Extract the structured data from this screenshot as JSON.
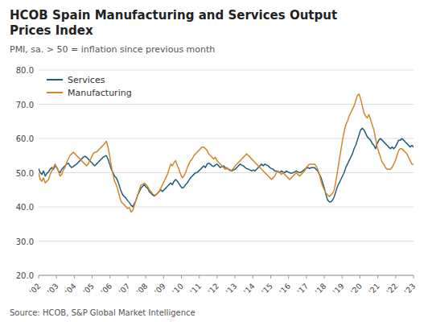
{
  "chart_data": {
    "type": "line",
    "title": "HCOB Spain Manufacturing and Services Output\nPrices Index",
    "subtitle": "PMI, sa. > 50 = inflation since previous month",
    "annotations": [
      "Source: HCOB, S&P Global Market Intelligence"
    ],
    "xlim": [
      2002,
      2023
    ],
    "xticks": [
      {
        "value": 2002,
        "label": "'02"
      },
      {
        "value": 2003,
        "label": "'03"
      },
      {
        "value": 2004,
        "label": "'04"
      },
      {
        "value": 2005,
        "label": "'05"
      },
      {
        "value": 2006,
        "label": "'06"
      },
      {
        "value": 2007,
        "label": "'07"
      },
      {
        "value": 2008,
        "label": "'08"
      },
      {
        "value": 2009,
        "label": "'09"
      },
      {
        "value": 2010,
        "label": "'10"
      },
      {
        "value": 2011,
        "label": "'11"
      },
      {
        "value": 2012,
        "label": "'12"
      },
      {
        "value": 2013,
        "label": "'13"
      },
      {
        "value": 2014,
        "label": "'14"
      },
      {
        "value": 2015,
        "label": "'15"
      },
      {
        "value": 2016,
        "label": "'16"
      },
      {
        "value": 2017,
        "label": "'17"
      },
      {
        "value": 2018,
        "label": "'18"
      },
      {
        "value": 2019,
        "label": "'19"
      },
      {
        "value": 2020,
        "label": "'20"
      },
      {
        "value": 2021,
        "label": "'21"
      },
      {
        "value": 2022,
        "label": "'22"
      },
      {
        "value": 2023,
        "label": "'23"
      }
    ],
    "ylim": [
      20.0,
      80.0
    ],
    "yticks": [
      {
        "value": 20.0,
        "label": "20.0"
      },
      {
        "value": 30.0,
        "label": "30.0"
      },
      {
        "value": 40.0,
        "label": "40.0"
      },
      {
        "value": 50.0,
        "label": "50.0"
      },
      {
        "value": 60.0,
        "label": "60.0"
      },
      {
        "value": 70.0,
        "label": "70.0"
      },
      {
        "value": 80.0,
        "label": "80.0"
      }
    ],
    "grid": true,
    "legend": "upper left",
    "series": [
      {
        "name": "Services",
        "color": "#1f5f7a",
        "values": [
          51.2,
          50.0,
          49.5,
          50.5,
          49.0,
          49.8,
          50.2,
          51.0,
          51.5,
          51.0,
          52.0,
          51.5,
          50.5,
          50.0,
          51.0,
          51.5,
          52.0,
          52.5,
          52.8,
          52.0,
          51.5,
          51.8,
          52.2,
          52.5,
          53.0,
          53.5,
          54.0,
          54.5,
          54.8,
          54.5,
          54.0,
          53.5,
          53.0,
          52.5,
          52.0,
          52.5,
          53.0,
          53.5,
          54.0,
          54.5,
          54.8,
          55.0,
          54.0,
          52.5,
          51.0,
          50.0,
          49.0,
          48.5,
          47.5,
          46.0,
          44.5,
          43.5,
          43.0,
          42.5,
          41.8,
          41.2,
          40.5,
          40.0,
          41.0,
          42.0,
          43.5,
          44.5,
          45.5,
          46.0,
          46.5,
          45.8,
          45.5,
          44.5,
          44.0,
          43.5,
          43.2,
          43.5,
          44.0,
          44.5,
          45.0,
          44.5,
          45.0,
          45.5,
          46.0,
          46.5,
          47.0,
          46.5,
          47.5,
          48.0,
          47.5,
          46.8,
          46.0,
          45.5,
          45.8,
          46.5,
          47.0,
          47.8,
          48.5,
          49.0,
          49.5,
          50.0,
          50.0,
          50.5,
          51.0,
          51.5,
          52.0,
          51.5,
          52.5,
          52.8,
          52.5,
          52.0,
          51.8,
          52.2,
          52.5,
          52.0,
          51.5,
          51.8,
          52.0,
          51.5,
          51.2,
          51.0,
          50.8,
          50.5,
          50.8,
          51.0,
          51.5,
          52.0,
          52.5,
          52.2,
          52.0,
          51.5,
          51.2,
          51.0,
          50.8,
          50.5,
          50.8,
          50.5,
          51.0,
          51.5,
          52.0,
          52.5,
          52.0,
          52.5,
          52.2,
          52.0,
          51.5,
          51.2,
          51.0,
          50.5,
          50.5,
          50.2,
          50.0,
          50.5,
          50.2,
          50.0,
          50.5,
          50.2,
          50.0,
          49.8,
          50.0,
          50.2,
          50.5,
          50.2,
          50.0,
          50.2,
          50.5,
          51.0,
          51.2,
          51.5,
          51.2,
          51.5,
          51.5,
          51.5,
          51.0,
          50.5,
          49.5,
          48.5,
          47.0,
          45.5,
          43.5,
          42.0,
          41.5,
          41.5,
          42.0,
          43.0,
          44.5,
          46.0,
          47.0,
          48.0,
          49.0,
          50.0,
          51.5,
          52.5,
          53.5,
          54.5,
          55.5,
          57.0,
          58.0,
          59.5,
          61.0,
          62.5,
          63.0,
          62.5,
          61.5,
          60.5,
          60.0,
          59.5,
          58.5,
          58.0,
          57.0,
          58.5,
          59.5,
          60.0,
          59.5,
          59.0,
          58.5,
          58.0,
          57.5,
          57.0,
          57.5,
          57.0,
          57.5,
          58.5,
          59.5,
          59.5,
          60.0,
          59.5,
          59.0,
          58.5,
          58.0,
          57.5,
          58.0,
          57.5
        ]
      },
      {
        "name": "Manufacturing",
        "color": "#d4872a",
        "values": [
          50.0,
          48.0,
          47.5,
          48.5,
          47.0,
          47.5,
          48.0,
          49.5,
          50.5,
          51.5,
          52.5,
          51.5,
          50.5,
          49.0,
          49.5,
          50.8,
          51.5,
          53.0,
          54.0,
          55.0,
          55.5,
          56.0,
          55.5,
          55.0,
          54.5,
          54.0,
          53.5,
          53.0,
          52.5,
          52.0,
          52.5,
          53.5,
          54.5,
          55.5,
          56.0,
          56.0,
          56.5,
          57.0,
          57.5,
          58.0,
          58.5,
          59.2,
          57.5,
          55.0,
          52.0,
          49.5,
          47.5,
          46.5,
          45.0,
          43.0,
          41.5,
          41.0,
          40.5,
          40.0,
          39.5,
          39.8,
          38.5,
          39.0,
          40.5,
          42.0,
          43.5,
          45.0,
          46.5,
          46.5,
          47.0,
          46.5,
          46.0,
          45.0,
          44.5,
          43.8,
          43.5,
          43.5,
          44.0,
          44.5,
          45.5,
          46.5,
          47.5,
          48.5,
          49.5,
          51.0,
          52.5,
          52.0,
          53.0,
          53.5,
          52.0,
          51.0,
          49.5,
          48.5,
          49.0,
          50.0,
          51.5,
          52.5,
          53.5,
          54.0,
          55.0,
          55.5,
          56.0,
          56.5,
          57.0,
          57.5,
          57.5,
          57.0,
          56.5,
          55.5,
          55.0,
          54.5,
          54.0,
          54.5,
          53.5,
          53.0,
          52.5,
          52.0,
          51.5,
          51.0,
          51.5,
          51.0,
          50.5,
          50.8,
          51.2,
          52.0,
          52.5,
          53.0,
          53.5,
          54.0,
          54.5,
          55.0,
          55.5,
          55.0,
          54.5,
          54.0,
          53.5,
          53.0,
          52.5,
          52.0,
          51.5,
          51.0,
          50.5,
          50.0,
          49.5,
          49.0,
          48.5,
          48.0,
          48.5,
          49.0,
          50.0,
          50.5,
          50.0,
          49.5,
          50.0,
          49.5,
          49.0,
          48.5,
          48.0,
          48.5,
          49.0,
          49.5,
          50.0,
          49.5,
          49.0,
          49.5,
          50.0,
          50.5,
          51.5,
          52.0,
          52.5,
          52.5,
          52.5,
          52.5,
          52.0,
          51.0,
          49.5,
          47.5,
          46.0,
          45.0,
          44.0,
          43.5,
          43.0,
          43.5,
          44.0,
          45.0,
          47.5,
          50.5,
          53.5,
          56.5,
          59.5,
          62.0,
          64.0,
          65.0,
          66.5,
          67.5,
          68.5,
          69.5,
          71.0,
          72.5,
          73.0,
          71.5,
          69.5,
          67.5,
          66.5,
          66.0,
          67.0,
          65.5,
          64.0,
          62.5,
          60.0,
          57.5,
          56.0,
          54.5,
          53.0,
          52.5,
          51.5,
          51.0,
          51.0,
          51.0,
          51.5,
          52.5,
          53.5,
          55.0,
          56.5,
          57.0,
          57.0,
          56.5,
          56.0,
          55.5,
          54.5,
          53.5,
          52.5,
          52.5
        ]
      }
    ]
  }
}
